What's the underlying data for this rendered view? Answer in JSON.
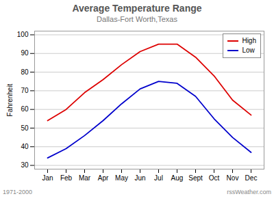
{
  "chart_data": {
    "type": "line",
    "title": "Average Temperature Range",
    "subtitle": "Dallas-Fort Worth,Texas",
    "ylabel": "Fahrenheit",
    "categories": [
      "Jan",
      "Feb",
      "Mar",
      "Apr",
      "May",
      "Jun",
      "Jul",
      "Aug",
      "Sept",
      "Oct",
      "Nov",
      "Dec"
    ],
    "series": [
      {
        "name": "High",
        "color": "#dd0000",
        "values": [
          54,
          60,
          69,
          76,
          84,
          91,
          95,
          95,
          88,
          78,
          65,
          57
        ]
      },
      {
        "name": "Low",
        "color": "#0000cc",
        "values": [
          34,
          39,
          46,
          54,
          63,
          71,
          75,
          74,
          67,
          55,
          45,
          37
        ]
      }
    ],
    "ylim": [
      28,
      102
    ],
    "yticks": [
      30,
      40,
      50,
      60,
      70,
      80,
      90,
      100
    ],
    "grid": true,
    "legend": "upper right",
    "annotations": [
      "1971-2000",
      "rssWeather.com"
    ]
  }
}
